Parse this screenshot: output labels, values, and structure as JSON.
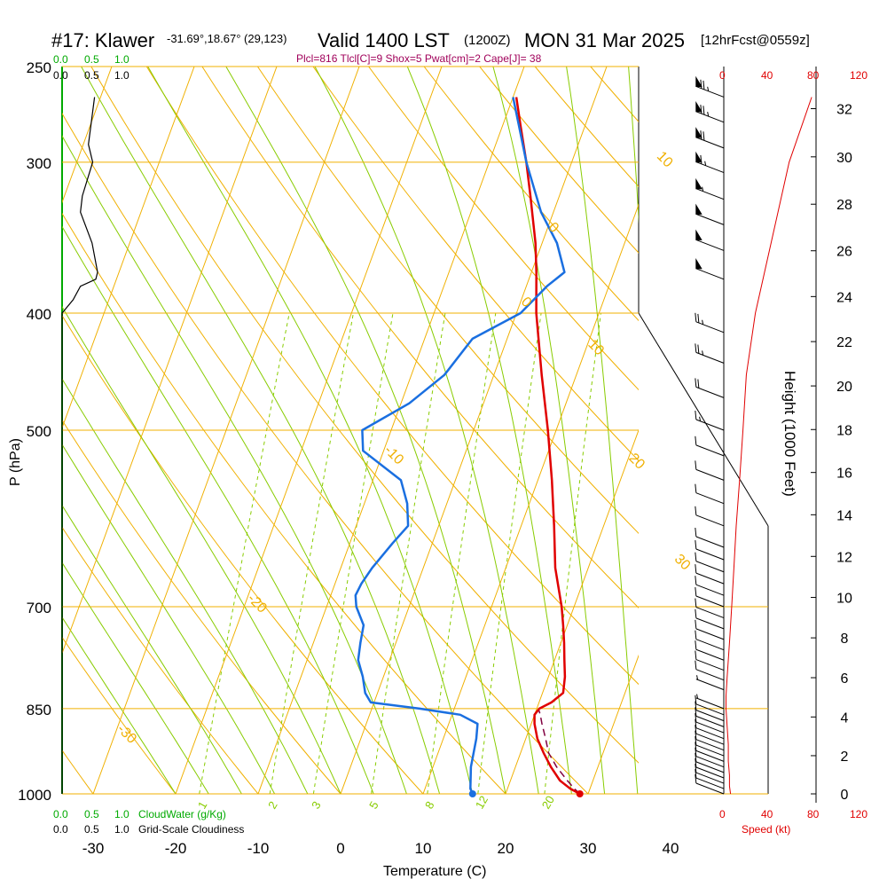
{
  "header": {
    "station": "#17: Klawer",
    "coords": "-31.69°,18.67° (29,123)",
    "valid": "Valid 1400 LST",
    "utc": "(1200Z)",
    "date": "MON 31 Mar 2025",
    "forecast": "[12hrFcst@0559z]",
    "indices": "Plcl=816 Tlcl[C]=9 Shox=5 Pwat[cm]=2 Cape[J]= 38"
  },
  "colors": {
    "isotherm": "#f0b000",
    "dry_adiabat": "#88cc00",
    "moist_adiabat": "#88cc00",
    "mixing_ratio": "#88cc00",
    "temperature": "#e00000",
    "dewpoint": "#1a6fe0",
    "parcel": "#800040",
    "indices": "#a0005a",
    "speed": "#e00000",
    "cloudwater": "#00aa00"
  },
  "cloud_panel": {
    "top_green_ticks": [
      "0.0",
      "0.5",
      "1.0"
    ],
    "top_black_ticks": [
      "0.0",
      "0.5",
      "1.0"
    ],
    "bottom_green_ticks": [
      "0.0",
      "0.5",
      "1.0"
    ],
    "bottom_green_label": "CloudWater (g/Kg)",
    "bottom_black_ticks": [
      "0.0",
      "0.5",
      "1.0"
    ],
    "bottom_black_label": "Grid-Scale Cloudiness"
  },
  "speed_panel": {
    "ticks": [
      "0",
      "40",
      "80",
      "120"
    ],
    "label": "Speed (kt)"
  },
  "height_axis": {
    "label": "Height (1000 Feet)",
    "ticks": [
      0,
      2,
      4,
      6,
      8,
      10,
      12,
      14,
      16,
      18,
      20,
      22,
      24,
      26,
      28,
      30,
      32
    ]
  },
  "chart_data": {
    "type": "line",
    "title": "#17: Klawer -31.69°,18.67° (29,123)   Valid 1400 LST (1200Z) MON 31 Mar 2025 [12hrFcst@0559z]",
    "xlabel": "Temperature (C)",
    "ylabel": "P (hPa)",
    "x_ticks": [
      -30,
      -20,
      -10,
      0,
      10,
      20,
      30,
      40
    ],
    "y_ticks": [
      250,
      300,
      400,
      500,
      700,
      850,
      1000
    ],
    "ylim": [
      1000,
      250
    ],
    "log_pressure": true,
    "isotherm_labels": [
      {
        "label": "10",
        "temp": 10,
        "p": 297
      },
      {
        "label": "0",
        "temp": 0,
        "p": 392
      },
      {
        "label": "-10",
        "temp": -10,
        "p": 520
      },
      {
        "label": "-20",
        "temp": -20,
        "p": 690
      },
      {
        "label": "-30",
        "temp": -30,
        "p": 885
      },
      {
        "label": "0",
        "temp": 0,
        "p": 340
      },
      {
        "label": "10",
        "temp": 10,
        "p": 425
      },
      {
        "label": "20",
        "temp": 20,
        "p": 528
      },
      {
        "label": "30",
        "temp": 30,
        "p": 640
      }
    ],
    "mixing_ratio_labels": [
      "1",
      "2",
      "3",
      "5",
      "8",
      "12",
      "20"
    ],
    "series": [
      {
        "name": "Temperature",
        "p": [
          1000,
          990,
          975,
          950,
          925,
          900,
          875,
          860,
          850,
          840,
          825,
          800,
          775,
          750,
          725,
          700,
          650,
          600,
          550,
          500,
          450,
          400,
          370,
          350,
          320,
          300,
          280,
          265
        ],
        "t": [
          29.0,
          27.6,
          26.0,
          24.3,
          22.8,
          21.4,
          20.4,
          20.0,
          20.3,
          21.5,
          22.5,
          22.0,
          21.2,
          20.4,
          19.5,
          18.5,
          16.0,
          14.0,
          11.7,
          9.0,
          5.8,
          2.4,
          0.6,
          -0.8,
          -3.5,
          -5.5,
          -7.8,
          -9.6
        ]
      },
      {
        "name": "Dewpoint",
        "p": [
          1000,
          990,
          950,
          900,
          875,
          860,
          850,
          840,
          825,
          800,
          775,
          750,
          725,
          700,
          685,
          670,
          650,
          620,
          600,
          575,
          550,
          520,
          500,
          475,
          450,
          420,
          400,
          380,
          370,
          350,
          330,
          300,
          280,
          265
        ],
        "t": [
          16.0,
          15.5,
          14.6,
          14.0,
          13.5,
          11.0,
          5.8,
          -0.4,
          -1.5,
          -2.5,
          -3.8,
          -4.3,
          -4.7,
          -6.4,
          -7.0,
          -6.8,
          -6.2,
          -4.8,
          -3.7,
          -4.8,
          -6.6,
          -12.5,
          -13.5,
          -9.0,
          -6.0,
          -4.2,
          0.5,
          2.5,
          4.0,
          1.8,
          -1.5,
          -5.5,
          -8.0,
          -10.0
        ]
      },
      {
        "name": "Parcel",
        "p": [
          1000,
          990,
          975,
          950,
          925,
          900,
          875,
          860,
          850
        ],
        "t": [
          29.0,
          28.1,
          26.9,
          25.0,
          23.4,
          22.4,
          21.3,
          20.7,
          20.2
        ]
      },
      {
        "name": "Cloudiness",
        "p": [
          1000,
          400,
          390,
          380,
          375,
          370,
          350,
          330,
          320,
          300,
          290,
          280,
          265
        ],
        "v": [
          0.0,
          0.0,
          0.18,
          0.3,
          0.55,
          0.58,
          0.49,
          0.3,
          0.33,
          0.5,
          0.43,
          0.47,
          0.53
        ]
      },
      {
        "name": "Speed (kt)",
        "p": [
          1000,
          985,
          965,
          940,
          910,
          880,
          850,
          830,
          800,
          750,
          700,
          650,
          600,
          550,
          500,
          450,
          400,
          350,
          300,
          265
        ],
        "v": [
          6,
          5,
          5,
          4,
          4,
          3,
          2,
          2,
          3,
          5,
          7,
          9,
          11,
          14,
          17,
          20,
          28,
          42,
          58,
          78
        ]
      }
    ],
    "wind_barbs": [
      {
        "p": 1000,
        "speed": 10
      },
      {
        "p": 990,
        "speed": 10
      },
      {
        "p": 980,
        "speed": 10
      },
      {
        "p": 970,
        "speed": 10
      },
      {
        "p": 960,
        "speed": 10
      },
      {
        "p": 950,
        "speed": 10
      },
      {
        "p": 940,
        "speed": 10
      },
      {
        "p": 930,
        "speed": 10
      },
      {
        "p": 920,
        "speed": 10
      },
      {
        "p": 910,
        "speed": 10
      },
      {
        "p": 900,
        "speed": 10
      },
      {
        "p": 890,
        "speed": 10
      },
      {
        "p": 880,
        "speed": 10
      },
      {
        "p": 870,
        "speed": 10
      },
      {
        "p": 860,
        "speed": 10
      },
      {
        "p": 850,
        "speed": 5
      },
      {
        "p": 820,
        "speed": 5
      },
      {
        "p": 805,
        "speed": 10
      },
      {
        "p": 790,
        "speed": 10
      },
      {
        "p": 775,
        "speed": 10
      },
      {
        "p": 760,
        "speed": 10
      },
      {
        "p": 745,
        "speed": 10
      },
      {
        "p": 730,
        "speed": 10
      },
      {
        "p": 715,
        "speed": 10
      },
      {
        "p": 700,
        "speed": 10
      },
      {
        "p": 685,
        "speed": 10
      },
      {
        "p": 670,
        "speed": 10
      },
      {
        "p": 655,
        "speed": 10
      },
      {
        "p": 640,
        "speed": 10
      },
      {
        "p": 625,
        "speed": 10
      },
      {
        "p": 600,
        "speed": 10
      },
      {
        "p": 575,
        "speed": 10
      },
      {
        "p": 550,
        "speed": 10
      },
      {
        "p": 525,
        "speed": 10
      },
      {
        "p": 500,
        "speed": 15
      },
      {
        "p": 470,
        "speed": 20
      },
      {
        "p": 440,
        "speed": 25
      },
      {
        "p": 415,
        "speed": 25
      },
      {
        "p": 375,
        "speed": 50
      },
      {
        "p": 355,
        "speed": 50
      },
      {
        "p": 338,
        "speed": 50
      },
      {
        "p": 322,
        "speed": 55
      },
      {
        "p": 306,
        "speed": 65
      },
      {
        "p": 292,
        "speed": 70
      },
      {
        "p": 278,
        "speed": 75
      },
      {
        "p": 265,
        "speed": 75
      }
    ]
  }
}
